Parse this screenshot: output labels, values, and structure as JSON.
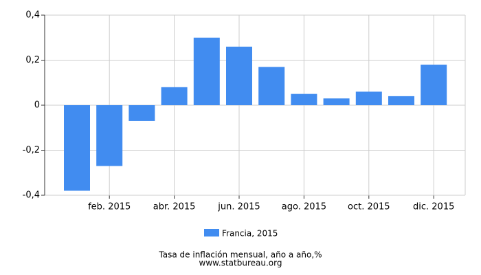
{
  "chart_data": {
    "type": "bar",
    "title": "Tasa de inflación mensual, año a año,%",
    "source": "www.statbureau.org",
    "categories": [
      null,
      "feb. 2015",
      null,
      "abr. 2015",
      null,
      "jun. 2015",
      null,
      "ago. 2015",
      null,
      "oct. 2015",
      null,
      "dic. 2015"
    ],
    "series": [
      {
        "name": "Francia, 2015",
        "color": "#418cf0",
        "values": [
          -0.38,
          -0.27,
          -0.07,
          0.08,
          0.3,
          0.26,
          0.17,
          0.05,
          0.03,
          0.06,
          0.04,
          0.18
        ]
      }
    ],
    "ylim": [
      -0.4,
      0.4
    ],
    "yticks": [
      {
        "value": -0.4,
        "label": "-0,4"
      },
      {
        "value": -0.2,
        "label": "-0,2"
      },
      0,
      {
        "value": 0.2,
        "label": "0,2"
      },
      {
        "value": 0.4,
        "label": "0,4"
      }
    ],
    "grid": true
  }
}
